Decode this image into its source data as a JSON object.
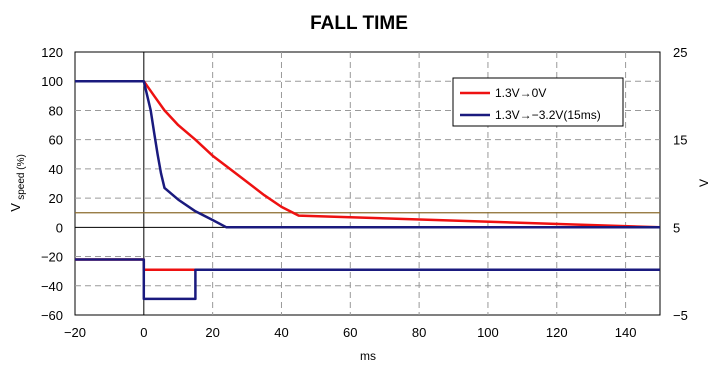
{
  "chart_data": {
    "type": "line",
    "title": "FALL TIME",
    "xlabel": "ms",
    "ylabel_main": "V",
    "ylabel_sub": "speed (%)",
    "y2label": "V",
    "xlim": [
      -20,
      150
    ],
    "ylim": [
      -60,
      120
    ],
    "y2lim": [
      -5,
      25
    ],
    "xticks": [
      -20,
      0,
      20,
      40,
      60,
      80,
      100,
      120,
      140
    ],
    "yticks": [
      -60,
      -40,
      -20,
      0,
      20,
      40,
      60,
      80,
      100,
      120
    ],
    "y2ticks": [
      -5,
      5,
      15,
      25
    ],
    "grid": true,
    "legend_position": "top-right",
    "reference_line": {
      "y": 10,
      "color": "#8B6C2E"
    },
    "series": [
      {
        "name": "1.3V→0V",
        "color": "#ee1111",
        "legend": true,
        "x": [
          -20,
          0,
          3,
          6,
          10,
          15,
          20,
          25,
          30,
          35,
          40,
          45,
          150
        ],
        "y": [
          100,
          100,
          90,
          80,
          70,
          60,
          49,
          40,
          31,
          22,
          14,
          8,
          0
        ]
      },
      {
        "name": "1.3V→−3.2V(15ms)",
        "color": "#1a1a7e",
        "legend": true,
        "x": [
          -20,
          0,
          2,
          3,
          4,
          5,
          6,
          10,
          15,
          20,
          24,
          150
        ],
        "y": [
          100,
          100,
          80,
          65,
          50,
          37,
          27,
          19,
          11,
          5,
          0,
          0
        ]
      },
      {
        "name": "",
        "color": "#ee1111",
        "legend": false,
        "x": [
          -20,
          0,
          0,
          15,
          15,
          150
        ],
        "y": [
          -22,
          -22,
          -29,
          -29,
          -29,
          -29
        ]
      },
      {
        "name": "",
        "color": "#1a1a7e",
        "legend": false,
        "x": [
          -20,
          0,
          0,
          15,
          15,
          150
        ],
        "y": [
          -22,
          -22,
          -49,
          -49,
          -29,
          -29
        ]
      }
    ]
  }
}
